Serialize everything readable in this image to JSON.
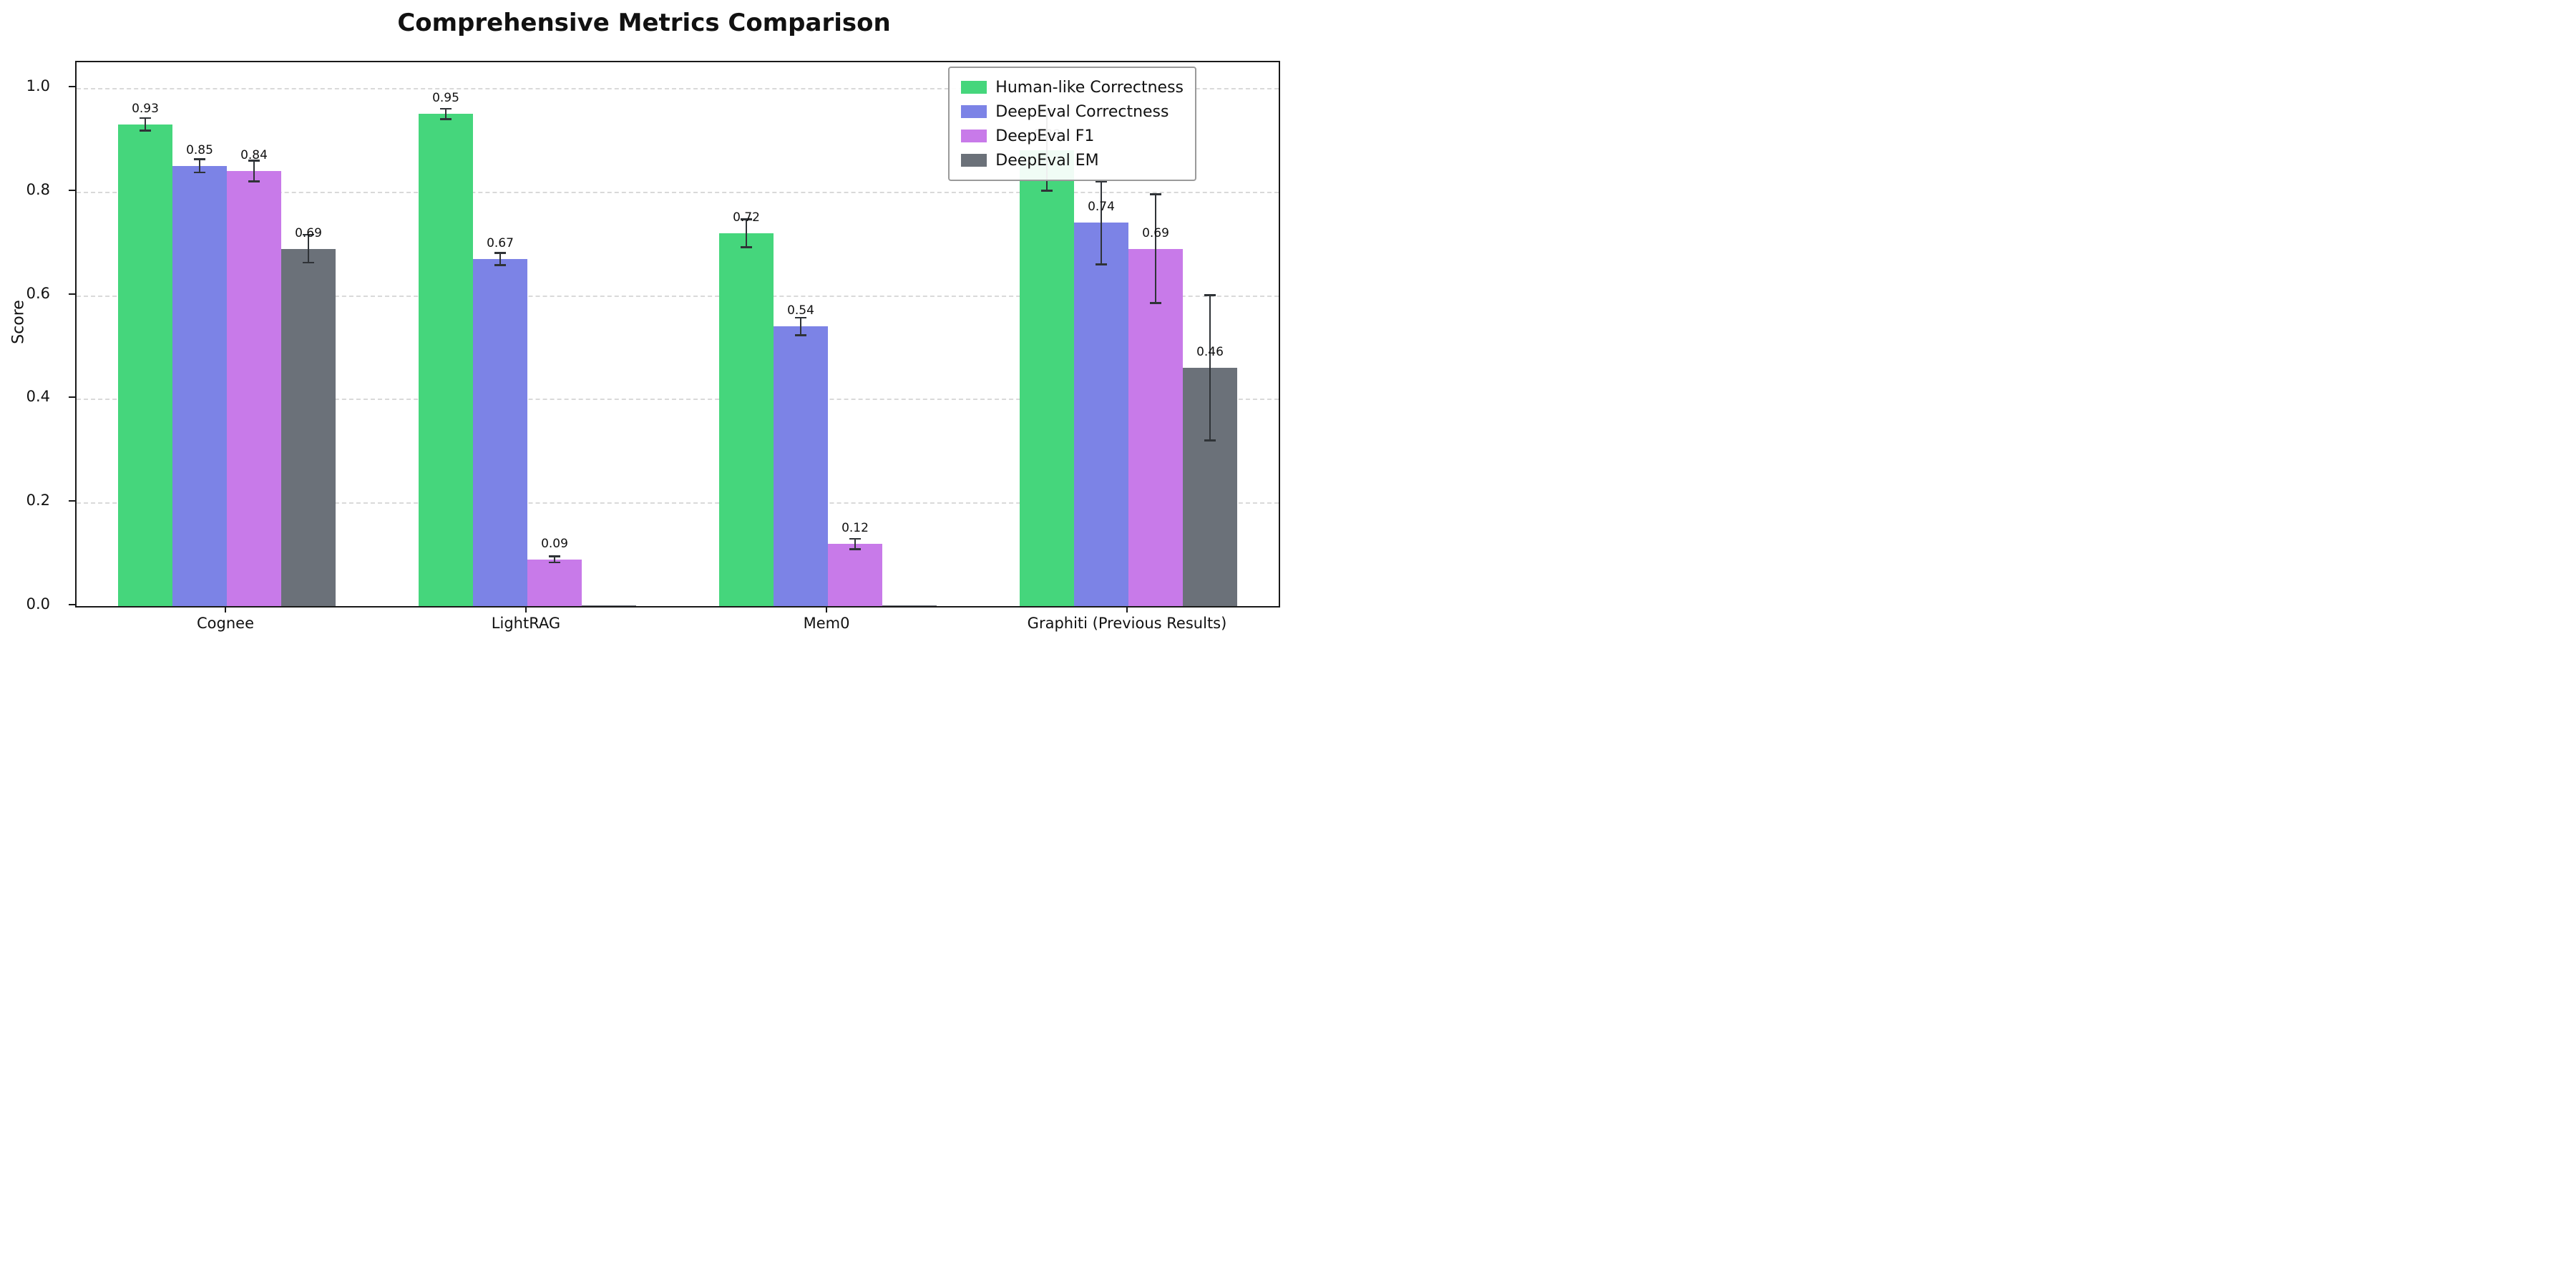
{
  "title": "Comprehensive Metrics Comparison",
  "chart_data": {
    "type": "bar",
    "title": "Comprehensive Metrics Comparison",
    "xlabel": "",
    "ylabel": "Score",
    "ylim": [
      0,
      1.05
    ],
    "yticks": [
      0.0,
      0.2,
      0.4,
      0.6,
      0.8,
      1.0
    ],
    "ytick_labels": [
      "0.0",
      "0.2",
      "0.4",
      "0.6",
      "0.8",
      "1.0"
    ],
    "grid": "horizontal-dashed",
    "legend_position": "upper right",
    "error_bar_color": "#2f3337",
    "categories": [
      "Cognee",
      "LightRAG",
      "Mem0",
      "Graphiti (Previous Results)"
    ],
    "series": [
      {
        "name": "Human-like Correctness",
        "color": "#45d67c",
        "values": [
          0.93,
          0.95,
          0.72,
          0.88
        ],
        "errors": [
          0.012,
          0.01,
          0.027,
          0.078
        ],
        "labels": [
          "0.93",
          "0.95",
          "0.72",
          "0.88"
        ]
      },
      {
        "name": "DeepEval Correctness",
        "color": "#7c83e6",
        "values": [
          0.85,
          0.67,
          0.54,
          0.74
        ],
        "errors": [
          0.013,
          0.012,
          0.017,
          0.08
        ],
        "labels": [
          "0.85",
          "0.67",
          "0.54",
          "0.74"
        ]
      },
      {
        "name": "DeepEval F1",
        "color": "#c87ae9",
        "values": [
          0.84,
          0.09,
          0.12,
          0.69
        ],
        "errors": [
          0.02,
          0.006,
          0.01,
          0.105
        ],
        "labels": [
          "0.84",
          "0.09",
          "0.12",
          "0.69"
        ]
      },
      {
        "name": "DeepEval EM",
        "color": "#6b7179",
        "values": [
          0.69,
          0.002,
          0.002,
          0.46
        ],
        "errors": [
          0.027,
          0,
          0,
          0.14
        ],
        "labels": [
          "0.69",
          "",
          "",
          "0.46"
        ]
      }
    ]
  }
}
